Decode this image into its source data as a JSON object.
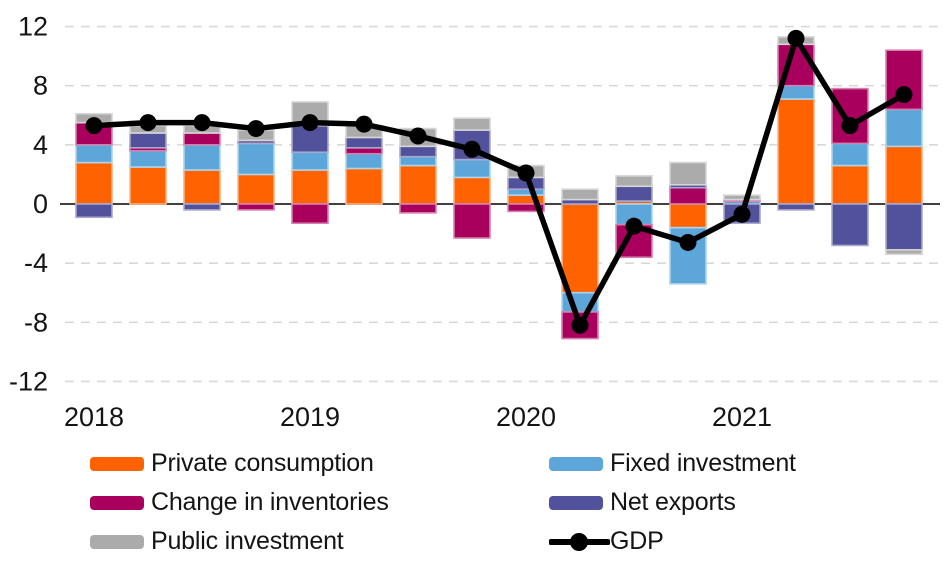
{
  "chart_data": {
    "type": "bar",
    "subtype": "stacked-column-with-line",
    "title": "",
    "xlabel": "",
    "ylabel": "",
    "categories": [
      "2018Q1",
      "2018Q2",
      "2018Q3",
      "2018Q4",
      "2019Q1",
      "2019Q2",
      "2019Q3",
      "2019Q4",
      "2020Q1",
      "2020Q2",
      "2020Q3",
      "2020Q4",
      "2021Q1",
      "2021Q2",
      "2021Q3",
      "2021Q4"
    ],
    "x_year_labels": [
      {
        "label": "2018",
        "at_category_index": 0
      },
      {
        "label": "2019",
        "at_category_index": 4
      },
      {
        "label": "2020",
        "at_category_index": 8
      },
      {
        "label": "2021",
        "at_category_index": 12
      }
    ],
    "y_ticks": [
      12,
      8,
      4,
      0,
      -4,
      -8,
      -12
    ],
    "ylim": [
      -12,
      12
    ],
    "grid": "horizontal-dashed, zero-line-solid",
    "legend_position": "bottom-two-columns",
    "series": [
      {
        "name": "Private consumption",
        "type": "column",
        "color": "#FF6200",
        "values": [
          2.8,
          2.5,
          2.3,
          2.0,
          2.3,
          2.4,
          2.6,
          1.8,
          0.6,
          -6.0,
          0.2,
          -1.6,
          0.0,
          7.1,
          2.6,
          3.9
        ]
      },
      {
        "name": "Fixed investment",
        "type": "column",
        "color": "#5CA6DA",
        "values": [
          1.2,
          1.1,
          1.7,
          2.1,
          1.2,
          1.0,
          0.6,
          1.2,
          0.4,
          -1.3,
          -1.4,
          -3.8,
          0.2,
          0.9,
          1.5,
          2.5
        ]
      },
      {
        "name": "Change in inventories",
        "type": "column",
        "color": "#A8005C",
        "values": [
          1.5,
          0.2,
          0.8,
          -0.4,
          -1.3,
          0.4,
          -0.6,
          -2.3,
          -0.5,
          -1.8,
          -2.2,
          1.1,
          0.1,
          2.8,
          3.7,
          4.0
        ]
      },
      {
        "name": "Net exports",
        "type": "column",
        "color": "#52519B",
        "values": [
          -0.9,
          1.0,
          -0.4,
          0.2,
          1.8,
          0.7,
          0.7,
          2.0,
          0.8,
          0.3,
          1.0,
          0.2,
          -1.3,
          -0.4,
          -2.8,
          -3.1
        ]
      },
      {
        "name": "Public investment",
        "type": "column",
        "color": "#ABABAB",
        "values": [
          0.6,
          0.5,
          0.5,
          0.7,
          1.6,
          0.8,
          1.2,
          0.8,
          0.8,
          0.7,
          0.7,
          1.5,
          0.3,
          0.5,
          0.0,
          -0.3
        ]
      },
      {
        "name": "GDP",
        "type": "line",
        "color": "#000000",
        "values": [
          5.3,
          5.5,
          5.5,
          5.1,
          5.5,
          5.4,
          4.6,
          3.7,
          2.1,
          -8.2,
          -1.5,
          -2.6,
          -0.7,
          11.2,
          5.3,
          7.4
        ]
      }
    ],
    "legend": {
      "column1": [
        "Private consumption",
        "Change in inventories",
        "Public investment"
      ],
      "column2": [
        "Fixed investment",
        "Net exports",
        "GDP"
      ]
    },
    "colors": {
      "grid": "#D9D9D9",
      "zero_line": "#000000",
      "tick_text": "#141414"
    }
  }
}
